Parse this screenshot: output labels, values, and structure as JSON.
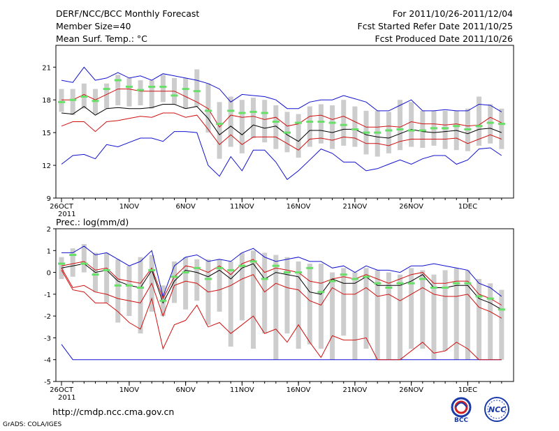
{
  "header": {
    "title": "DERF/NCC/BCC Monthly Forecast",
    "member_size": "Member Size=40",
    "variable": "Mean Surf. Temp.: °C",
    "forecast_period": "For 2011/10/26-2011/12/04",
    "started_date": "Fcst Started Refer Date 2011/10/25",
    "produced_date": "Fcst Produced Date 2011/10/26"
  },
  "footer": {
    "url": "http://cmdp.ncc.cma.gov.cn",
    "credit": "GrADS: COLA/IGES",
    "logo_left_text": "BCC",
    "logo_right_text": "NCC"
  },
  "colors": {
    "box": "#cdcdcd",
    "median": "#66e066",
    "max_min": "#1010d0",
    "quartile": "#d01010",
    "mean": "#000000"
  },
  "chart_data": [
    {
      "type": "box",
      "title": "Mean Surf. Temp.: °C",
      "ylim": [
        9,
        23
      ],
      "yticks": [
        9,
        12,
        15,
        18,
        21
      ],
      "xticks": [
        {
          "day": 0,
          "label": "26OCT"
        },
        {
          "day": 6,
          "label": "1NOV"
        },
        {
          "day": 11,
          "label": "6NOV"
        },
        {
          "day": 16,
          "label": "11NOV"
        },
        {
          "day": 21,
          "label": "16NOV"
        },
        {
          "day": 26,
          "label": "21NOV"
        },
        {
          "day": 31,
          "label": "26NOV"
        },
        {
          "day": 36,
          "label": "1DEC"
        }
      ],
      "year_label": "2011",
      "days": 40,
      "max": [
        19.8,
        19.6,
        21.0,
        19.8,
        20.0,
        20.5,
        20.0,
        20.2,
        19.8,
        20.4,
        20.2,
        20.0,
        19.8,
        19.5,
        19.0,
        17.8,
        18.5,
        18.4,
        18.3,
        18.0,
        17.2,
        17.2,
        17.8,
        18.0,
        18.0,
        18.4,
        18.1,
        17.8,
        17.0,
        17.0,
        17.5,
        18.0,
        17.0,
        17.0,
        17.1,
        17.0,
        17.0,
        17.6,
        17.5,
        16.9
      ],
      "q3": [
        18.0,
        18.0,
        18.5,
        18.0,
        18.5,
        19.0,
        19.0,
        18.8,
        18.8,
        18.8,
        18.8,
        18.3,
        17.8,
        17.2,
        15.5,
        16.6,
        16.4,
        16.5,
        16.2,
        16.4,
        15.6,
        15.8,
        16.5,
        16.6,
        16.2,
        16.5,
        16.0,
        15.5,
        15.5,
        15.6,
        15.5,
        16.0,
        15.8,
        15.8,
        15.7,
        15.8,
        15.6,
        15.7,
        16.4,
        15.9
      ],
      "mean": [
        16.8,
        16.7,
        17.4,
        16.6,
        17.2,
        17.3,
        17.2,
        17.2,
        17.3,
        17.6,
        17.6,
        17.2,
        17.4,
        16.3,
        14.8,
        15.6,
        14.8,
        15.7,
        15.4,
        15.6,
        14.8,
        14.2,
        15.2,
        15.2,
        15.0,
        15.3,
        15.3,
        14.8,
        14.6,
        14.5,
        14.9,
        15.3,
        15.1,
        15.0,
        15.1,
        15.2,
        14.9,
        15.3,
        15.4,
        15.0
      ],
      "q1": [
        15.6,
        16.0,
        16.0,
        15.1,
        16.0,
        16.1,
        16.3,
        16.5,
        16.4,
        16.8,
        16.8,
        16.4,
        16.6,
        15.3,
        13.9,
        14.8,
        13.9,
        14.6,
        14.6,
        14.6,
        14.0,
        13.4,
        14.4,
        14.5,
        14.3,
        14.6,
        14.5,
        14.0,
        14.0,
        13.8,
        14.2,
        14.4,
        14.4,
        14.4,
        14.4,
        14.5,
        14.0,
        14.4,
        14.8,
        14.4
      ],
      "min": [
        12.1,
        12.9,
        13.0,
        12.6,
        13.9,
        13.7,
        14.1,
        14.5,
        14.5,
        14.2,
        15.1,
        15.1,
        15.0,
        12.0,
        11.0,
        12.8,
        11.5,
        13.4,
        13.4,
        12.3,
        10.7,
        11.5,
        12.5,
        13.5,
        13.1,
        12.3,
        12.3,
        11.5,
        11.7,
        12.1,
        12.5,
        12.1,
        12.6,
        12.9,
        12.9,
        12.1,
        12.5,
        13.5,
        13.6,
        12.9
      ],
      "box_q3": [
        19.0,
        19.0,
        19.5,
        19.0,
        19.5,
        20.3,
        20.0,
        19.8,
        19.8,
        20.3,
        20.0,
        20.0,
        20.8,
        19.5,
        17.8,
        18.3,
        18.0,
        18.2,
        18.0,
        17.5,
        16.9,
        16.7,
        17.4,
        17.6,
        17.5,
        18.0,
        17.4,
        17.0,
        17.0,
        16.9,
        18.0,
        17.8,
        17.0,
        17.0,
        17.0,
        17.0,
        17.2,
        18.3,
        17.6,
        17.2
      ],
      "box_q1": [
        16.9,
        16.6,
        17.2,
        16.7,
        17.2,
        17.5,
        17.4,
        17.5,
        17.2,
        17.8,
        17.6,
        17.2,
        17.4,
        15.0,
        12.6,
        13.7,
        13.1,
        14.5,
        14.1,
        13.5,
        13.2,
        12.7,
        13.7,
        14.0,
        13.5,
        13.8,
        13.7,
        13.0,
        12.8,
        13.1,
        13.4,
        13.7,
        13.6,
        13.8,
        13.5,
        13.4,
        13.3,
        13.8,
        14.0,
        13.5
      ],
      "median": [
        17.8,
        18.0,
        18.3,
        17.9,
        19.0,
        19.8,
        19.2,
        18.9,
        19.2,
        19.2,
        18.4,
        19.0,
        18.8,
        17.0,
        15.8,
        17.0,
        16.8,
        16.9,
        16.8,
        16.0,
        15.0,
        15.9,
        16.0,
        16.0,
        15.9,
        15.7,
        15.3,
        15.0,
        15.0,
        15.2,
        15.3,
        15.2,
        15.2,
        15.4,
        15.4,
        15.6,
        15.3,
        15.6,
        15.9,
        15.8
      ]
    },
    {
      "type": "box",
      "title": "Prec.: log(mm/d)",
      "ylim": [
        -5,
        2
      ],
      "yticks": [
        -5,
        -4,
        -3,
        -2,
        -1,
        0,
        1,
        2
      ],
      "xticks": [
        {
          "day": 0,
          "label": "26OCT"
        },
        {
          "day": 6,
          "label": "1NOV"
        },
        {
          "day": 11,
          "label": "6NOV"
        },
        {
          "day": 16,
          "label": "11NOV"
        },
        {
          "day": 21,
          "label": "16NOV"
        },
        {
          "day": 26,
          "label": "21NOV"
        },
        {
          "day": 31,
          "label": "26NOV"
        },
        {
          "day": 36,
          "label": "1DEC"
        }
      ],
      "year_label": "2011",
      "days": 40,
      "max": [
        0.9,
        0.9,
        1.2,
        0.8,
        0.9,
        0.6,
        0.3,
        0.5,
        1.0,
        -1.1,
        0.3,
        0.7,
        0.8,
        0.5,
        0.6,
        0.5,
        0.9,
        1.1,
        0.7,
        0.5,
        0.6,
        0.7,
        0.5,
        0.5,
        0.2,
        0.3,
        0.0,
        0.3,
        0.1,
        0.1,
        0.0,
        0.3,
        0.3,
        0.4,
        0.3,
        0.2,
        0.1,
        -0.5,
        -0.7,
        -1.1
      ],
      "q3": [
        0.3,
        0.4,
        0.5,
        0.1,
        0.2,
        -0.3,
        -0.4,
        -0.5,
        0.2,
        -1.2,
        -0.2,
        0.3,
        0.2,
        0.0,
        0.3,
        -0.1,
        0.4,
        0.6,
        0.0,
        0.2,
        0.1,
        0.0,
        -0.4,
        -0.5,
        -0.3,
        -0.2,
        -0.3,
        -0.1,
        -0.3,
        -0.5,
        -0.3,
        -0.1,
        0.0,
        -0.5,
        -0.5,
        -0.4,
        -0.4,
        -1.0,
        -1.2,
        -1.5
      ],
      "mean": [
        0.2,
        0.3,
        0.4,
        0.0,
        0.1,
        -0.4,
        -0.6,
        -0.7,
        0.1,
        -1.4,
        -0.4,
        0.1,
        0.0,
        -0.2,
        0.1,
        -0.3,
        0.2,
        0.4,
        -0.3,
        0.0,
        -0.1,
        -0.2,
        -0.9,
        -1.0,
        -0.3,
        -0.5,
        -0.5,
        -0.2,
        -0.6,
        -0.6,
        -0.6,
        -0.4,
        -0.1,
        -0.7,
        -0.7,
        -0.6,
        -0.6,
        -1.2,
        -1.4,
        -1.7
      ],
      "q1": [
        0.2,
        -0.7,
        -0.6,
        -0.9,
        -1.0,
        -1.2,
        -1.3,
        -1.4,
        -0.5,
        -2.0,
        -0.6,
        -0.4,
        -0.5,
        -0.9,
        -0.8,
        -0.6,
        -0.3,
        -0.1,
        -0.9,
        -0.5,
        -0.7,
        -0.8,
        -1.3,
        -1.5,
        -0.7,
        -1.0,
        -1.0,
        -0.7,
        -1.1,
        -1.0,
        -1.3,
        -1.0,
        -0.7,
        -1.0,
        -1.1,
        -1.1,
        -1.0,
        -1.6,
        -1.8,
        -2.1
      ],
      "min": [
        -3.3,
        -4.0,
        -4.0,
        -4.0,
        -4.0,
        -4.0,
        -4.0,
        -4.0,
        -4.0,
        -4.0,
        -4.0,
        -4.0,
        -4.0,
        -4.0,
        -4.0,
        -4.0,
        -4.0,
        -4.0,
        -4.0,
        -4.0,
        -4.0,
        -4.0,
        -4.0,
        -4.0,
        -4.0,
        -4.0,
        -4.0,
        -4.0,
        -4.0,
        -4.0,
        -4.0,
        -4.0,
        -4.0,
        -4.0,
        -4.0,
        -4.0,
        -4.0,
        -4.0,
        -4.0,
        -4.0
      ],
      "lower": [
        0.1,
        -0.8,
        -0.9,
        -1.4,
        -1.4,
        -1.8,
        -2.3,
        -2.6,
        -1.2,
        -3.5,
        -2.4,
        -2.2,
        -1.5,
        -2.5,
        -2.3,
        -2.8,
        -2.4,
        -2.0,
        -2.8,
        -2.6,
        -3.2,
        -2.4,
        -3.2,
        -3.9,
        -2.9,
        -3.1,
        -3.1,
        -3.0,
        -4.0,
        -4.0,
        -4.0,
        -3.6,
        -3.2,
        -3.7,
        -3.6,
        -3.2,
        -3.5,
        -4.0,
        -4.0,
        -4.0
      ],
      "box_q3": [
        0.7,
        1.1,
        1.3,
        0.9,
        0.9,
        0.6,
        0.3,
        0.7,
        0.8,
        -0.6,
        0.5,
        0.7,
        0.6,
        0.6,
        0.6,
        0.5,
        0.9,
        1.0,
        0.9,
        0.8,
        0.7,
        0.5,
        0.4,
        0.4,
        0.0,
        0.2,
        0.0,
        0.2,
        0.1,
        0.0,
        -0.1,
        0.2,
        0.1,
        -0.1,
        0.1,
        0.2,
        0.1,
        -0.3,
        -0.5,
        -0.8
      ],
      "box_q1": [
        -0.3,
        -0.2,
        0.0,
        -0.9,
        -1.4,
        -2.3,
        -2.0,
        -2.8,
        -1.8,
        -2.0,
        -1.4,
        -1.7,
        -1.3,
        -2.4,
        -1.8,
        -3.4,
        -2.2,
        -3.5,
        -2.8,
        -4.0,
        -2.8,
        -3.5,
        -3.3,
        -3.5,
        -4.0,
        -2.9,
        -4.0,
        -3.5,
        -4.0,
        -4.0,
        -4.0,
        -3.5,
        -3.5,
        -4.0,
        -3.6,
        -4.0,
        -4.0,
        -4.0,
        -4.0,
        -4.0
      ],
      "median": [
        0.4,
        0.8,
        0.4,
        -0.1,
        0.1,
        -0.6,
        -0.6,
        -0.7,
        0.1,
        -1.3,
        -0.2,
        0.0,
        0.2,
        -0.3,
        0.2,
        0.1,
        0.3,
        0.5,
        -0.3,
        0.3,
        0.0,
        0.0,
        0.2,
        -0.9,
        -0.4,
        -0.1,
        -0.3,
        -0.2,
        -0.5,
        -0.7,
        -0.5,
        -0.5,
        -0.3,
        -0.7,
        -0.7,
        -0.5,
        -0.5,
        -1.1,
        -1.2,
        -1.7
      ]
    }
  ]
}
